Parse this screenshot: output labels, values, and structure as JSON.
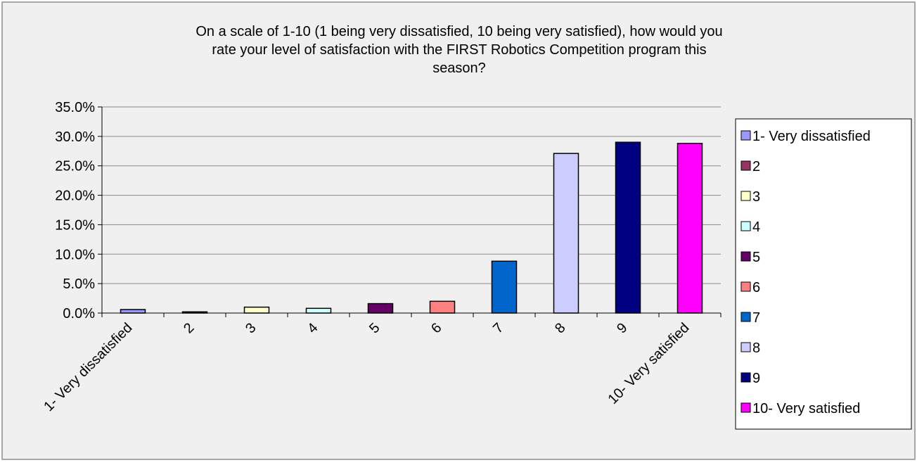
{
  "chart_data": {
    "type": "bar",
    "title_lines": [
      "On a scale of 1-10 (1 being very dissatisfied, 10 being very satisfied), how would you",
      "rate your level of satisfaction with the FIRST Robotics Competition program this",
      "season?"
    ],
    "categories": [
      "1- Very dissatisfied",
      "2",
      "3",
      "4",
      "5",
      "6",
      "7",
      "8",
      "9",
      "10- Very satisfied"
    ],
    "values": [
      0.6,
      0.2,
      1.0,
      0.8,
      1.6,
      2.0,
      8.8,
      27.1,
      29.0,
      28.8
    ],
    "colors": [
      "#9999ff",
      "#993366",
      "#ffffcc",
      "#ccffff",
      "#660066",
      "#ff8080",
      "#0066cc",
      "#ccccff",
      "#000080",
      "#ff00ff"
    ],
    "y_ticks": [
      "35.0%",
      "30.0%",
      "25.0%",
      "20.0%",
      "15.0%",
      "10.0%",
      "5.0%",
      "0.0%"
    ],
    "ylim": [
      0,
      35
    ],
    "y_tick_step": 5,
    "y_format": "percent_1dp",
    "grid": true,
    "legend": {
      "position": "right",
      "entries": [
        "1- Very dissatisfied",
        "2",
        "3",
        "4",
        "5",
        "6",
        "7",
        "8",
        "9",
        "10- Very satisfied"
      ]
    }
  }
}
